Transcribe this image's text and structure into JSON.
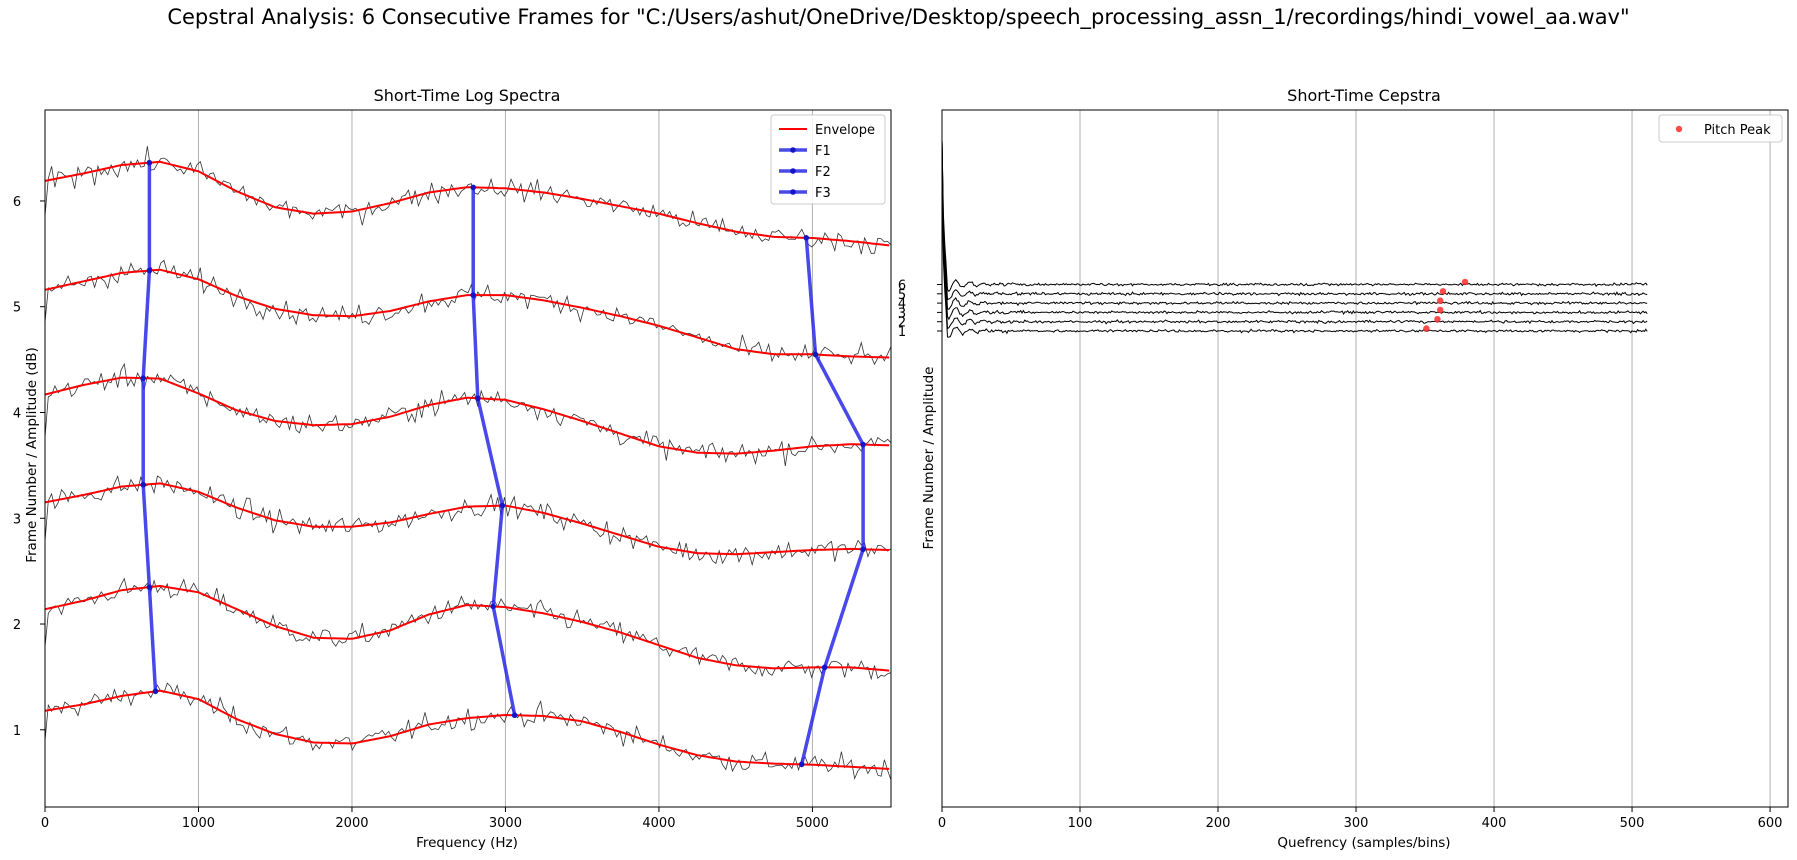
{
  "suptitle": "Cepstral Analysis: 6 Consecutive Frames for \"C:/Users/ashut/OneDrive/Desktop/speech_processing_assn_1/recordings/hindi_vowel_aa.wav\"",
  "colors": {
    "raw": "#333333",
    "envelope": "#ff0000",
    "formant": "#2828e8",
    "cepstrum": "#000000",
    "pitch": "#ff2a2a",
    "grid": "#b0b0b0"
  },
  "chart_data": [
    {
      "type": "line",
      "title": "Short-Time Log Spectra",
      "xlabel": "Frequency (Hz)",
      "ylabel": "Frame Number / Amplitude (dB)",
      "xlim": [
        0,
        5512
      ],
      "ylim": [
        0.27,
        6.86
      ],
      "xticks": [
        0,
        1000,
        2000,
        3000,
        4000,
        5000
      ],
      "xtick_labels": [
        "0",
        "1000",
        "2000",
        "3000",
        "4000",
        "5000"
      ],
      "yticks": [
        1,
        2,
        3,
        4,
        5,
        6
      ],
      "ytick_labels": [
        "1",
        "2",
        "3",
        "4",
        "5",
        "6"
      ],
      "grid": "x",
      "legend": {
        "position": "upper right",
        "entries": [
          "Envelope",
          "F1",
          "F2",
          "F3"
        ]
      },
      "frames": [
        1,
        2,
        3,
        4,
        5,
        6
      ],
      "envelope_x": [
        0,
        250,
        500,
        750,
        1000,
        1250,
        1500,
        1750,
        2000,
        2250,
        2500,
        2750,
        3000,
        3250,
        3500,
        3750,
        4000,
        4250,
        4500,
        4750,
        5000,
        5250,
        5500
      ],
      "envelope": [
        [
          1.18,
          1.24,
          1.32,
          1.37,
          1.29,
          1.1,
          0.96,
          0.88,
          0.87,
          0.94,
          1.05,
          1.11,
          1.14,
          1.13,
          1.08,
          0.98,
          0.86,
          0.76,
          0.7,
          0.68,
          0.67,
          0.65,
          0.63
        ],
        [
          2.14,
          2.22,
          2.32,
          2.36,
          2.3,
          2.14,
          1.98,
          1.87,
          1.86,
          1.94,
          2.09,
          2.18,
          2.16,
          2.1,
          2.02,
          1.92,
          1.8,
          1.68,
          1.61,
          1.58,
          1.59,
          1.59,
          1.56
        ],
        [
          3.15,
          3.22,
          3.3,
          3.33,
          3.25,
          3.1,
          2.98,
          2.92,
          2.92,
          2.96,
          3.04,
          3.11,
          3.12,
          3.05,
          2.95,
          2.84,
          2.73,
          2.67,
          2.66,
          2.68,
          2.7,
          2.71,
          2.7
        ],
        [
          4.17,
          4.26,
          4.33,
          4.32,
          4.18,
          4.02,
          3.92,
          3.88,
          3.89,
          3.96,
          4.07,
          4.14,
          4.12,
          4.03,
          3.92,
          3.8,
          3.68,
          3.62,
          3.61,
          3.64,
          3.68,
          3.7,
          3.69
        ],
        [
          5.16,
          5.24,
          5.32,
          5.35,
          5.26,
          5.1,
          4.98,
          4.92,
          4.91,
          4.96,
          5.05,
          5.11,
          5.11,
          5.06,
          4.99,
          4.91,
          4.82,
          4.71,
          4.6,
          4.55,
          4.55,
          4.53,
          4.52
        ],
        [
          6.19,
          6.26,
          6.34,
          6.37,
          6.28,
          6.09,
          5.94,
          5.88,
          5.9,
          5.98,
          6.08,
          6.13,
          6.12,
          6.08,
          6.02,
          5.95,
          5.88,
          5.79,
          5.71,
          5.66,
          5.65,
          5.62,
          5.58
        ]
      ],
      "raw_spectrum_note": "",
      "formants": [
        {
          "name": "F1",
          "freq": [
            720,
            680,
            640,
            640,
            680,
            680
          ]
        },
        {
          "name": "F2",
          "freq": [
            3060,
            2920,
            2980,
            2820,
            2790,
            2790
          ]
        },
        {
          "name": "F3",
          "freq": [
            4930,
            5080,
            5330,
            5330,
            5020,
            4960
          ]
        }
      ]
    },
    {
      "type": "line",
      "title": "Short-Time Cepstra",
      "xlabel": "Quefrency (samples/bins)",
      "ylabel": "Frame Number / Amplitude",
      "xlim": [
        0,
        613
      ],
      "xticks": [
        0,
        100,
        200,
        300,
        400,
        500,
        600
      ],
      "xtick_labels": [
        "0",
        "100",
        "200",
        "300",
        "400",
        "500",
        "600"
      ],
      "yticks": [
        1,
        2,
        3,
        4,
        5,
        6
      ],
      "ytick_labels": [
        "1",
        "2",
        "3",
        "4",
        "5",
        "6"
      ],
      "grid": "x",
      "legend": {
        "position": "upper right",
        "entries": [
          "Pitch Peak"
        ]
      },
      "frames": [
        1,
        2,
        3,
        4,
        5,
        6
      ],
      "cepstrum_length": 512,
      "pitch_peaks": [
        {
          "frame": 1,
          "quefrency": 351
        },
        {
          "frame": 2,
          "quefrency": 359
        },
        {
          "frame": 3,
          "quefrency": 361
        },
        {
          "frame": 4,
          "quefrency": 361
        },
        {
          "frame": 5,
          "quefrency": 363
        },
        {
          "frame": 6,
          "quefrency": 379
        }
      ]
    }
  ]
}
